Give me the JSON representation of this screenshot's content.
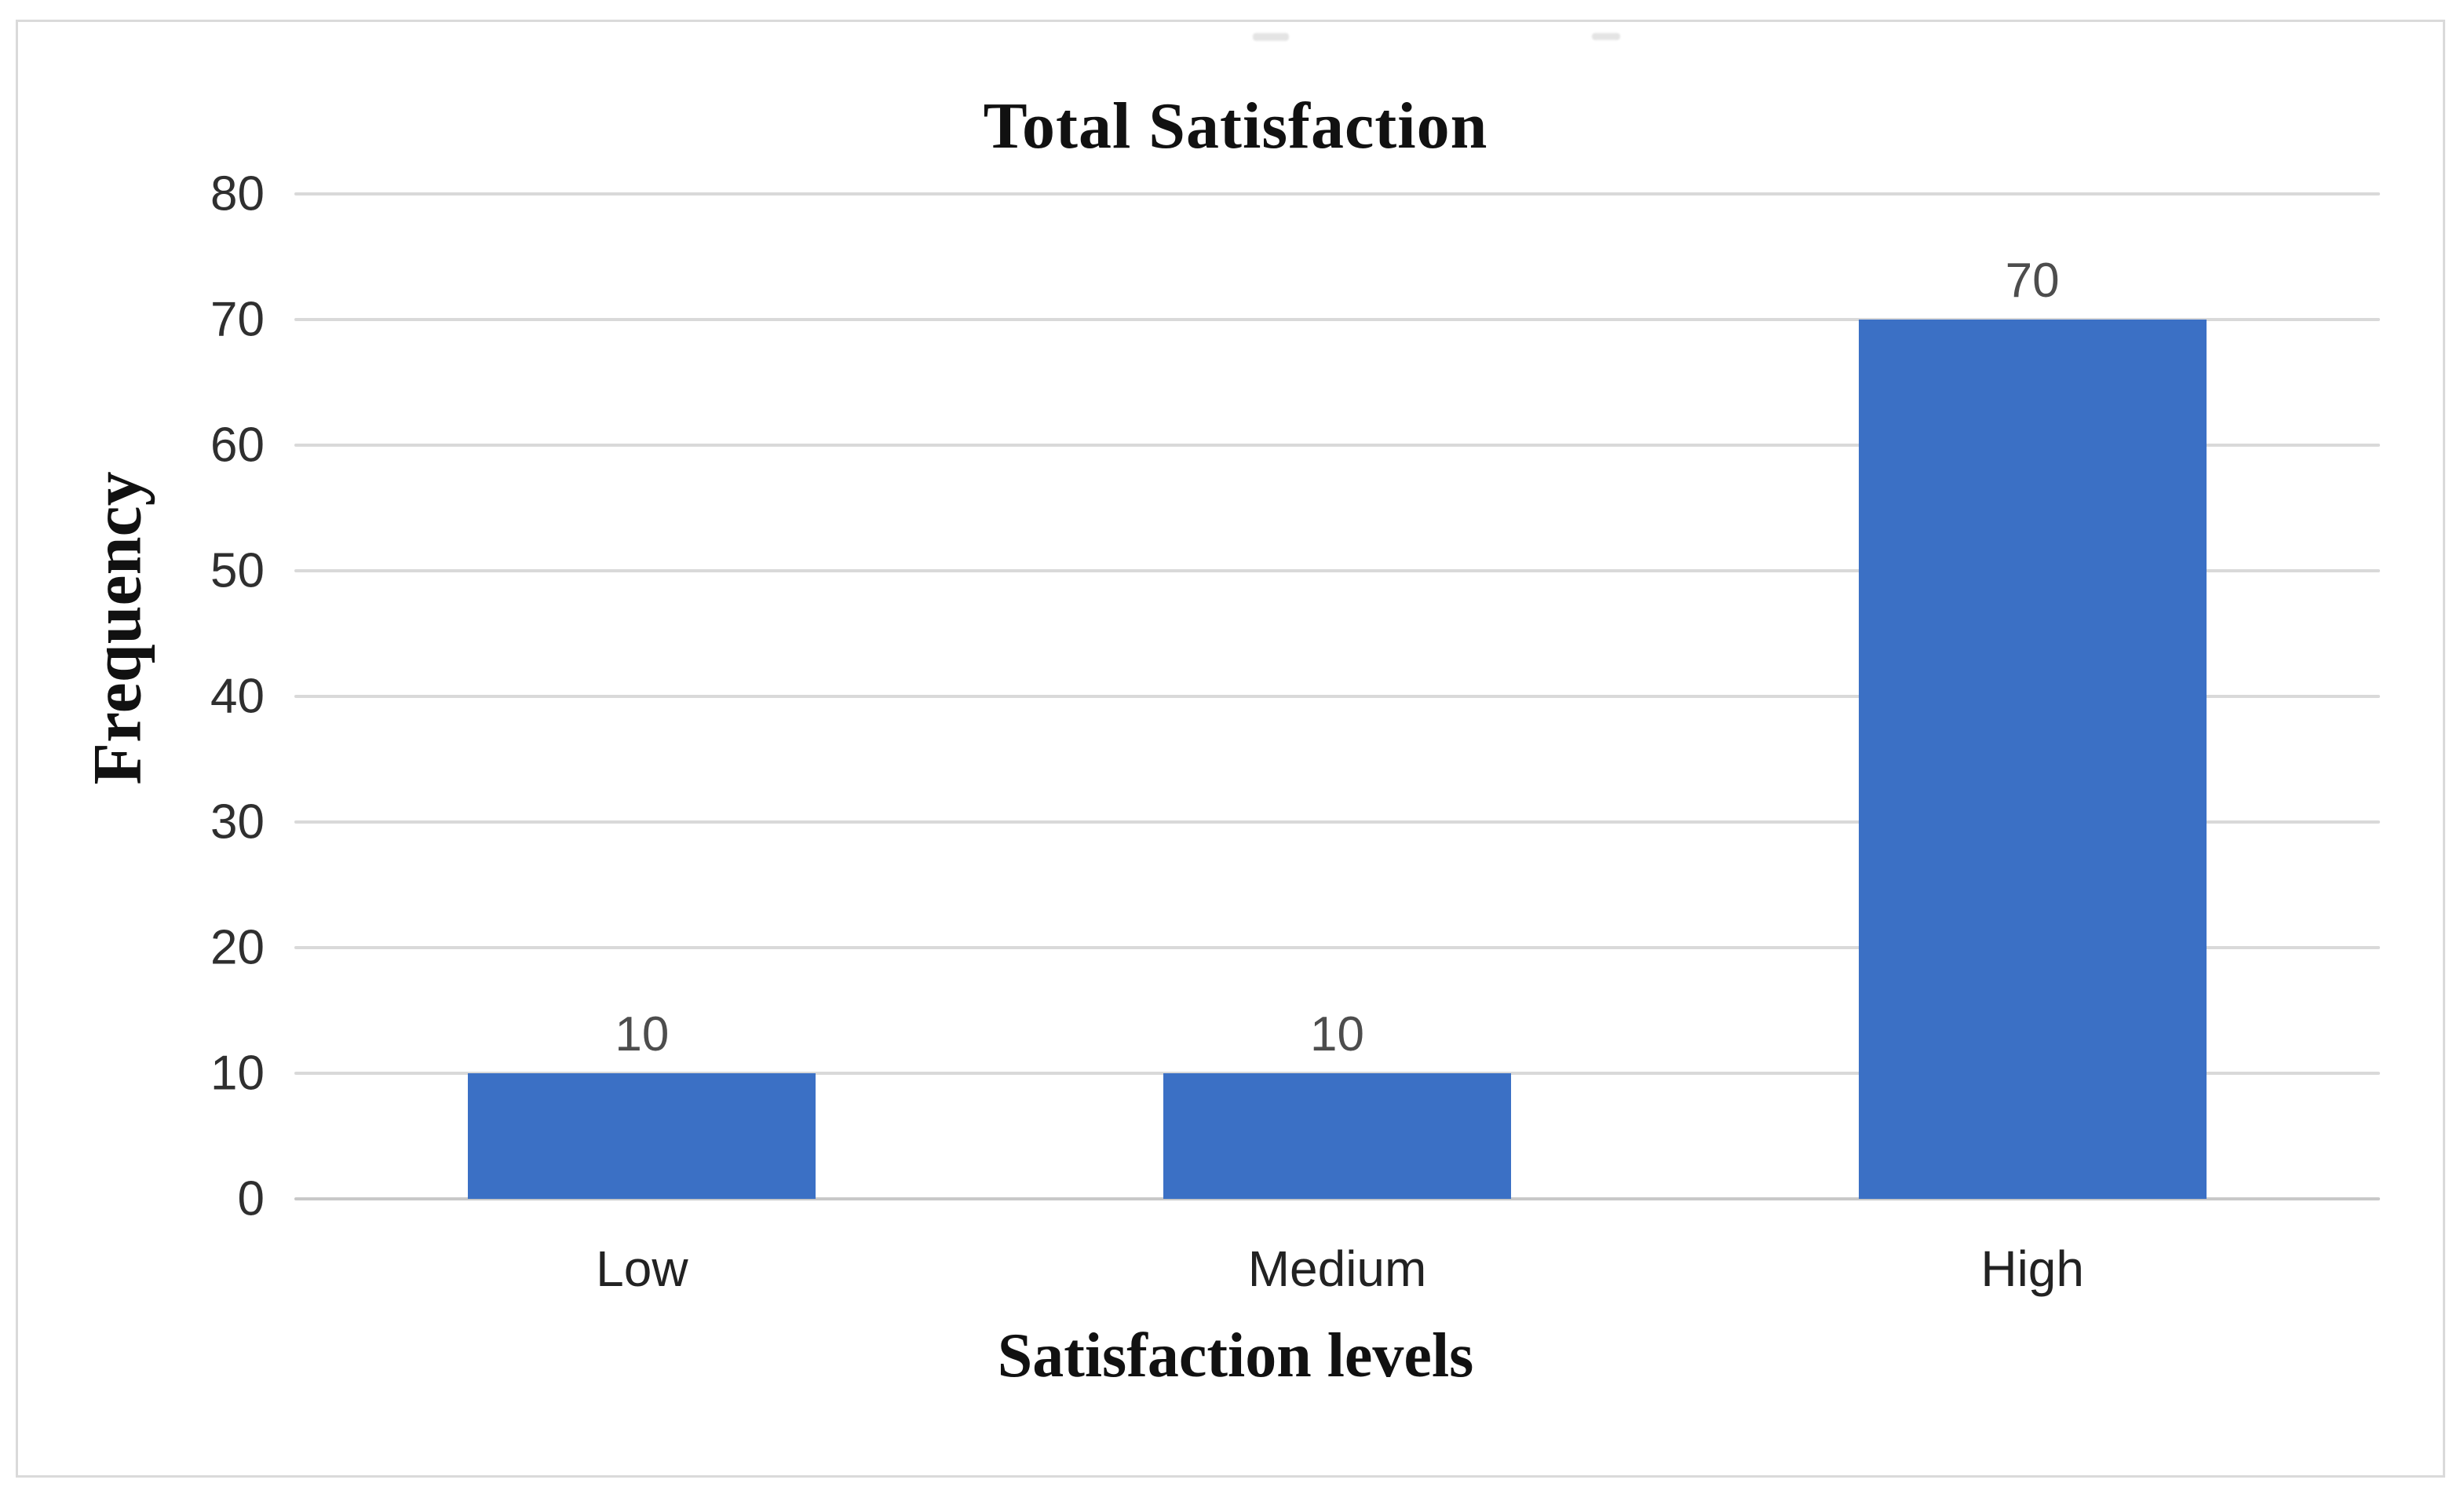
{
  "chart": {
    "title": "Total Satisfaction",
    "x_axis_title": "Satisfaction levels",
    "y_axis_title": "Frequency"
  },
  "chart_data": {
    "type": "bar",
    "title": "Total Satisfaction",
    "xlabel": "Satisfaction levels",
    "ylabel": "Frequency",
    "categories": [
      "Low",
      "Medium",
      "High"
    ],
    "values": [
      10,
      10,
      70
    ],
    "data_labels": [
      "10",
      "10",
      "70"
    ],
    "ylim": [
      0,
      80
    ],
    "yticks": [
      0,
      10,
      20,
      30,
      40,
      50,
      60,
      70,
      80
    ],
    "grid": true,
    "legend": false,
    "bar_color": "#3B70C5",
    "gridline_color": "#D9D9D9",
    "baseline_color": "#C8C8C8",
    "tick_label_color": "#2F2F2F",
    "data_label_color": "#4D4D4D"
  }
}
